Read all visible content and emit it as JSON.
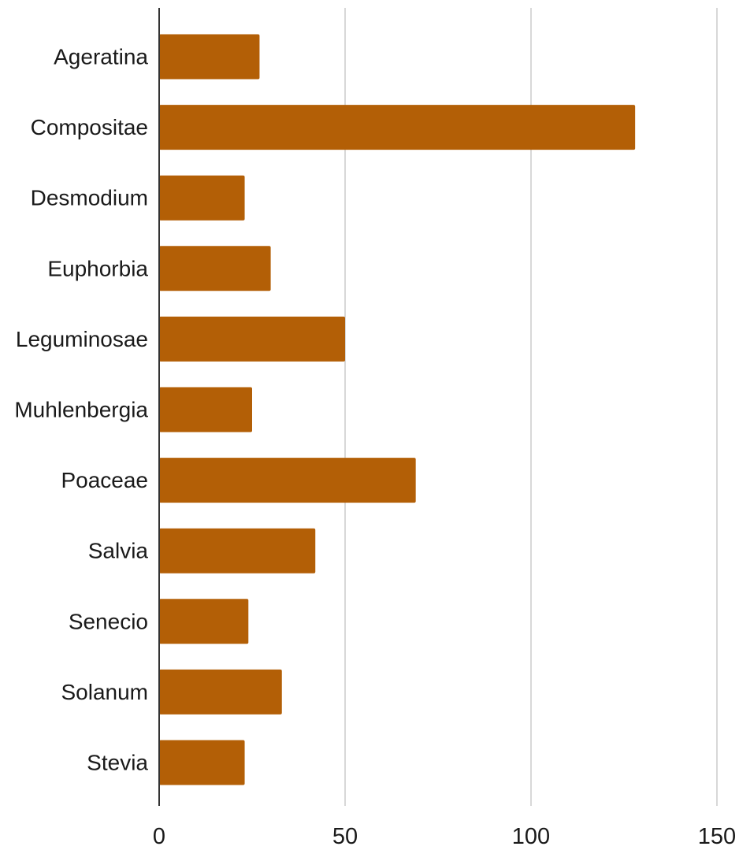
{
  "chart_data": {
    "type": "bar",
    "orientation": "horizontal",
    "title": "",
    "xlabel": "",
    "ylabel": "",
    "categories": [
      "Ageratina",
      "Compositae",
      "Desmodium",
      "Euphorbia",
      "Leguminosae",
      "Muhlenbergia",
      "Poaceae",
      "Salvia",
      "Senecio",
      "Solanum",
      "Stevia"
    ],
    "values": [
      27,
      128,
      23,
      30,
      50,
      25,
      69,
      42,
      24,
      33,
      23
    ],
    "xlim": [
      0,
      150
    ],
    "x_ticks": [
      0,
      50,
      100,
      150
    ],
    "x_tick_labels": [
      "0",
      "50",
      "100",
      "150"
    ],
    "grid": "vertical gridlines",
    "legend": "none",
    "colors": {
      "bar": "#b35f06",
      "grid": "#cccccc",
      "axis": "#333333",
      "text": "#1a1a1a"
    }
  }
}
